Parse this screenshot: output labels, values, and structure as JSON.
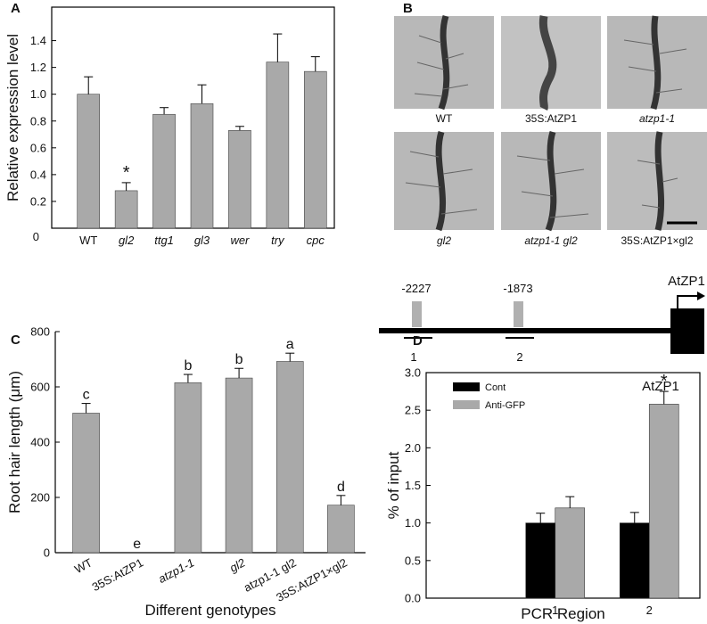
{
  "chart_data": [
    {
      "type": "bar",
      "panel_label": "A",
      "ylabel": "Relative expression level",
      "categories": [
        "WT",
        "gl2",
        "ttg1",
        "gl3",
        "wer",
        "try",
        "cpc"
      ],
      "values": [
        1.0,
        0.28,
        0.85,
        0.93,
        0.73,
        1.24,
        1.17
      ],
      "errors": [
        0.13,
        0.06,
        0.05,
        0.14,
        0.03,
        0.21,
        0.11
      ],
      "significance": [
        null,
        "*",
        null,
        null,
        null,
        null,
        null
      ],
      "color": "#a9a9a9",
      "ylim": [
        0,
        1.65
      ],
      "yticks": [
        0,
        0.2,
        0.4,
        0.6,
        0.8,
        {
          "value": 1,
          "label": "1.0"
        },
        1.2,
        1.4
      ]
    },
    {
      "type": "bar",
      "panel_label": "C",
      "ylabel": "Root hair length (μm)",
      "xlabel": "Different genotypes",
      "categories": [
        "WT",
        "35S:AtZP1",
        "atzp1-1",
        "gl2",
        "atzp1-1 gl2",
        "35S:AtZP1×gl2"
      ],
      "values": [
        505,
        0,
        615,
        632,
        692,
        172
      ],
      "errors": [
        35,
        0,
        30,
        35,
        30,
        35
      ],
      "significance": [
        "c",
        "e",
        "b",
        "b",
        "a",
        "d"
      ],
      "color": "#a9a9a9",
      "ylim": [
        0,
        800
      ],
      "yticks": [
        0,
        200,
        400,
        600,
        800
      ]
    },
    {
      "type": "grouped_bar",
      "panel_label": "D",
      "title": "AtZP1",
      "ylabel": "% of input",
      "xlabel": "PCR Region",
      "categories": [
        "1",
        "2"
      ],
      "series": [
        {
          "name": "Cont",
          "color": "#000000",
          "values": [
            1.0,
            1.0
          ],
          "errors": [
            0.13,
            0.14
          ],
          "significance": [
            null,
            null
          ]
        },
        {
          "name": "Anti-GFP",
          "color": "#a9a9a9",
          "values": [
            1.2,
            2.58
          ],
          "errors": [
            0.15,
            0.17
          ],
          "significance": [
            null,
            "*"
          ]
        }
      ],
      "ylim": [
        0,
        3.0
      ],
      "yticks": [
        {
          "value": 0,
          "label": "0.0"
        },
        {
          "value": 0.5,
          "label": "0.5"
        },
        {
          "value": 1,
          "label": "1.0"
        },
        {
          "value": 1.5,
          "label": "1.5"
        },
        {
          "value": 2,
          "label": "2.0"
        },
        {
          "value": 2.5,
          "label": "2.5"
        },
        {
          "value": 3,
          "label": "3.0"
        }
      ],
      "legend": "upper left"
    }
  ],
  "image_panel": {
    "label": "B",
    "captions": [
      "WT",
      "35S:AtZP1",
      "atzp1-1",
      "gl2",
      "atzp1-1 gl2",
      "35S:AtZP1×gl2"
    ]
  },
  "promoter_diagram": {
    "sites": [
      "-2227",
      "-1873"
    ],
    "gene": "AtZP1",
    "regions": [
      "1",
      "2"
    ]
  }
}
